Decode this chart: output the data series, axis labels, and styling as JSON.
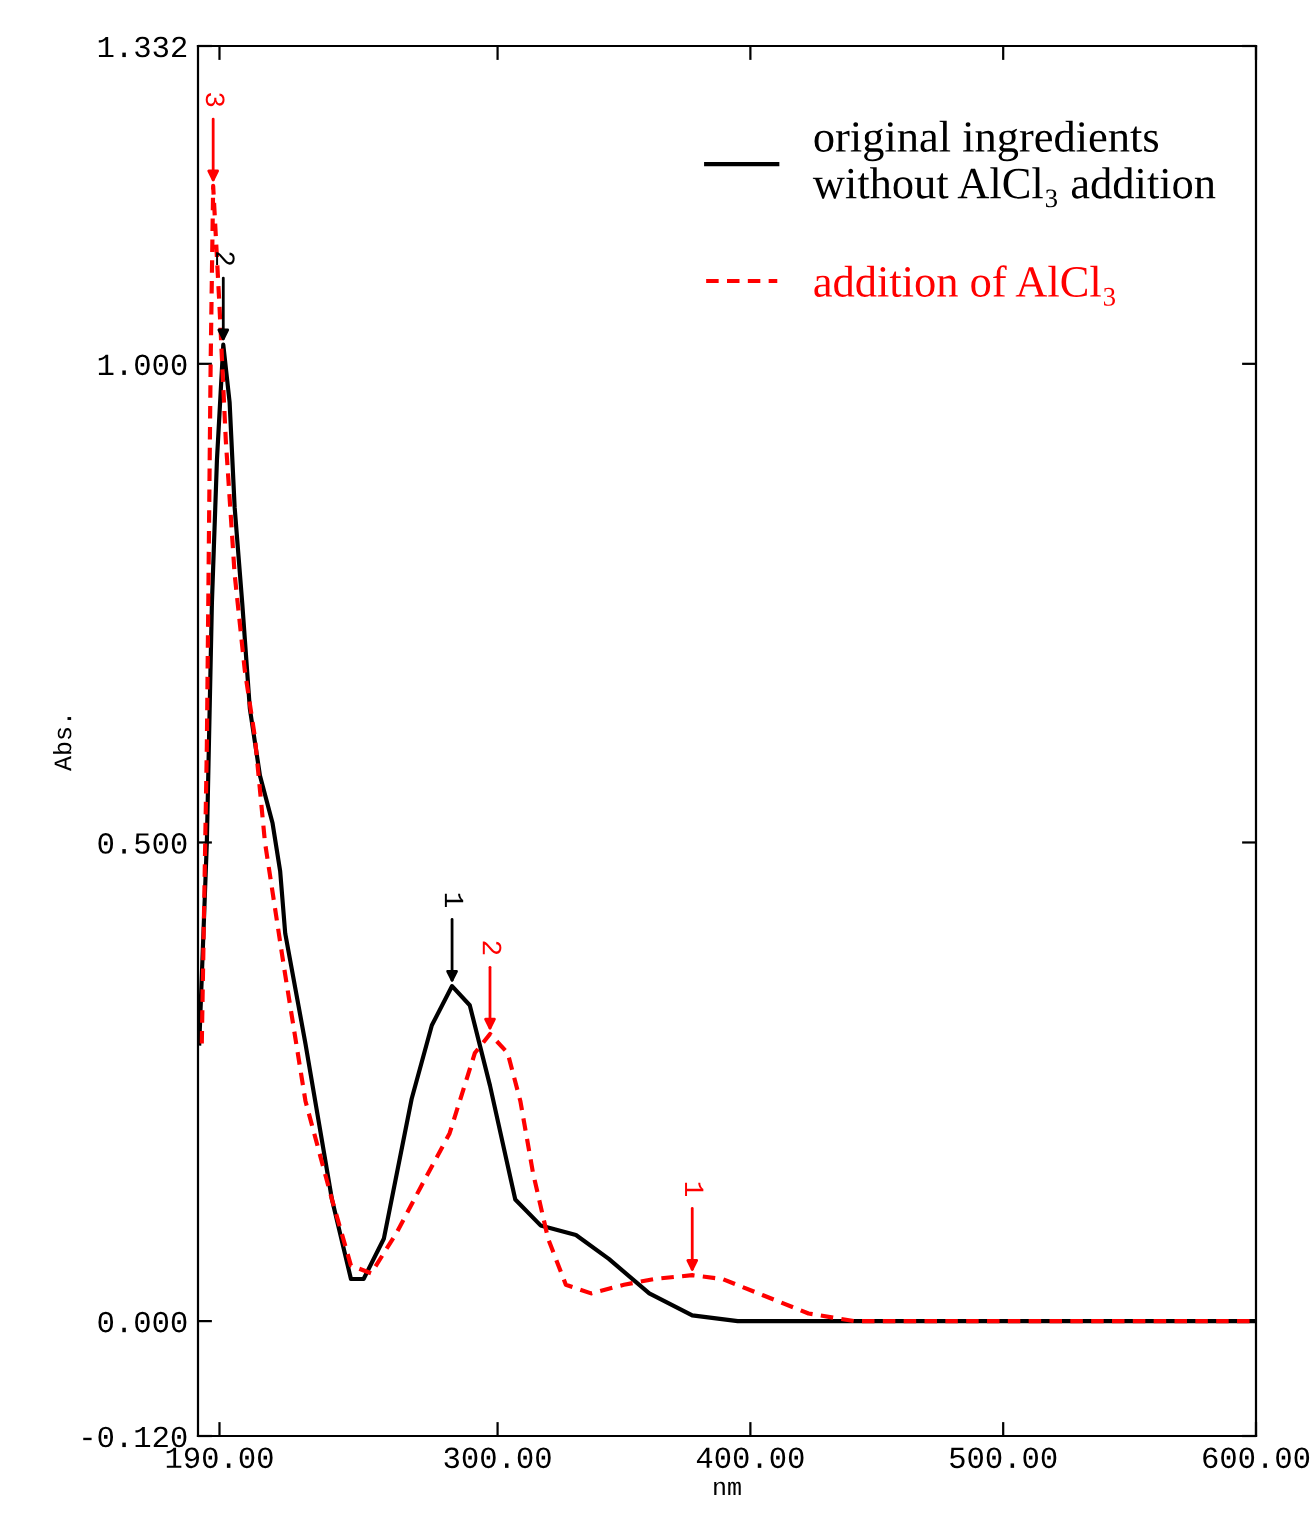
{
  "chart_data": {
    "type": "line",
    "xlabel": "nm",
    "ylabel": "Abs.",
    "xlim": [
      181.5,
      600
    ],
    "ylim": [
      -0.12,
      1.332
    ],
    "xticks": [
      {
        "value": 190,
        "label": "190.00"
      },
      {
        "value": 300,
        "label": "300.00"
      },
      {
        "value": 400,
        "label": "400.00"
      },
      {
        "value": 500,
        "label": "500.00"
      },
      {
        "value": 600,
        "label": "600.00"
      }
    ],
    "yticks": [
      {
        "value": -0.12,
        "label": "-0.120"
      },
      {
        "value": 0,
        "label": "0.000"
      },
      {
        "value": 0.5,
        "label": "0.500"
      },
      {
        "value": 1.0,
        "label": "1.000"
      },
      {
        "value": 1.332,
        "label": "1.332"
      }
    ],
    "grid": false,
    "legend": "top right",
    "marker": "none",
    "series": [
      {
        "name": "original ingredients\nwithout AlCl₃ addition",
        "color": "#000000",
        "line_style": "solid",
        "x": [
          182,
          185,
          187,
          189,
          191.5,
          194,
          196,
          199,
          202,
          206,
          211,
          214,
          216,
          224,
          234.5,
          242,
          247,
          255,
          266,
          274,
          282,
          289,
          297,
          307,
          317,
          331,
          344,
          360,
          377,
          395,
          600
        ],
        "values": [
          0.29,
          0.5,
          0.75,
          0.9,
          1.02,
          0.96,
          0.85,
          0.75,
          0.64,
          0.57,
          0.52,
          0.47,
          0.405,
          0.29,
          0.127,
          0.044,
          0.044,
          0.086,
          0.232,
          0.309,
          0.35,
          0.33,
          0.246,
          0.127,
          0.1,
          0.09,
          0.065,
          0.029,
          0.006,
          0,
          0
        ]
      },
      {
        "name": "addition of AlCl₃",
        "color": "#ff0000",
        "line_style": "dashed",
        "x": [
          183,
          185,
          186.5,
          187.5,
          190,
          192.5,
          196,
          200,
          204,
          208,
          215.5,
          224,
          234.5,
          242,
          250,
          260,
          270,
          281,
          291,
          297,
          304,
          309,
          314,
          320,
          327,
          337,
          350,
          362,
          377,
          389,
          405,
          423,
          441,
          600
        ],
        "values": [
          0.29,
          0.6,
          1.0,
          1.186,
          1.06,
          0.92,
          0.78,
          0.68,
          0.61,
          0.5,
          0.37,
          0.23,
          0.127,
          0.058,
          0.05,
          0.092,
          0.142,
          0.196,
          0.28,
          0.3,
          0.28,
          0.23,
          0.155,
          0.086,
          0.038,
          0.029,
          0.038,
          0.044,
          0.048,
          0.044,
          0.027,
          0.008,
          0,
          0
        ]
      }
    ],
    "annotations": [
      {
        "text": "2",
        "x": 191.5,
        "y": 1.02
      },
      {
        "text": "1",
        "x": 282,
        "y": 0.35
      },
      {
        "text": "3",
        "x": 187.5,
        "y": 1.186
      },
      {
        "text": "2",
        "x": 297,
        "y": 0.3
      },
      {
        "text": "1",
        "x": 377,
        "y": 0.048
      }
    ]
  }
}
